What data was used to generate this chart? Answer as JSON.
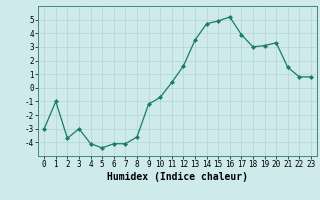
{
  "x": [
    0,
    1,
    2,
    3,
    4,
    5,
    6,
    7,
    8,
    9,
    10,
    11,
    12,
    13,
    14,
    15,
    16,
    17,
    18,
    19,
    20,
    21,
    22,
    23
  ],
  "y": [
    -3,
    -1,
    -3.7,
    -3,
    -4.1,
    -4.4,
    -4.1,
    -4.1,
    -3.6,
    -1.2,
    -0.7,
    0.4,
    1.6,
    3.5,
    4.7,
    4.9,
    5.2,
    3.9,
    3.0,
    3.1,
    3.3,
    1.5,
    0.8,
    0.8
  ],
  "line_color": "#1a7a6e",
  "marker": "D",
  "marker_size": 2.0,
  "bg_color": "#ceeaea",
  "grid_color": "#b8d8d8",
  "xlabel": "Humidex (Indice chaleur)",
  "xlim": [
    -0.5,
    23.5
  ],
  "ylim": [
    -5,
    6
  ],
  "yticks": [
    -4,
    -3,
    -2,
    -1,
    0,
    1,
    2,
    3,
    4,
    5
  ],
  "xticks": [
    0,
    1,
    2,
    3,
    4,
    5,
    6,
    7,
    8,
    9,
    10,
    11,
    12,
    13,
    14,
    15,
    16,
    17,
    18,
    19,
    20,
    21,
    22,
    23
  ],
  "tick_fontsize": 5.5,
  "label_fontsize": 7,
  "spine_color": "#448877"
}
